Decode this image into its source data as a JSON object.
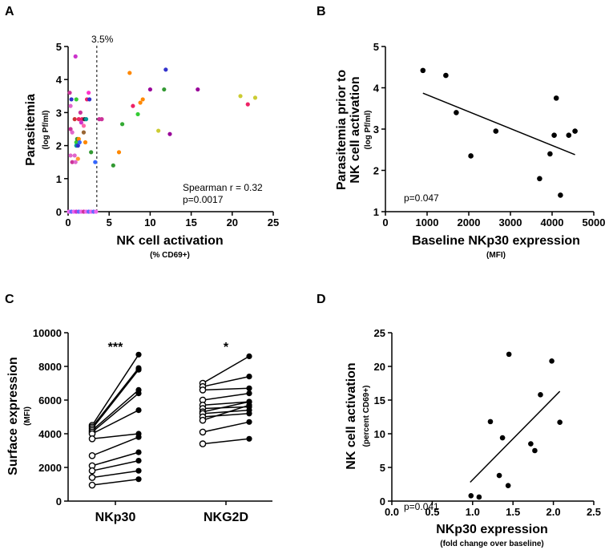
{
  "chart_data": [
    {
      "panel": "A",
      "type": "scatter",
      "xlabel": "NK cell activation",
      "xlabel_sub": "(% CD69+)",
      "ylabel": "Parasitemia",
      "ylabel_sub": "(log Pf/ml)",
      "xlim": [
        0,
        25
      ],
      "ylim": [
        0,
        5
      ],
      "xticks": [
        0,
        5,
        10,
        15,
        20,
        25
      ],
      "yticks": [
        0,
        1,
        2,
        3,
        4,
        5
      ],
      "threshold": {
        "x": 3.5,
        "label": "3.5%"
      },
      "annotations": [
        "Spearman r = 0.32",
        "p=0.0017"
      ],
      "points": [
        {
          "x": 0.2,
          "y": 3.6,
          "c": "#cc3399"
        },
        {
          "x": 0.4,
          "y": 3.4,
          "c": "#3333cc"
        },
        {
          "x": 0.3,
          "y": 3.2,
          "c": "#e066cc"
        },
        {
          "x": 0.3,
          "y": 2.5,
          "c": "#cc3399"
        },
        {
          "x": 0.5,
          "y": 2.4,
          "c": "#e066cc"
        },
        {
          "x": 0.3,
          "y": 1.7,
          "c": "#e066cc"
        },
        {
          "x": 0.5,
          "y": 1.5,
          "c": "#cc3399"
        },
        {
          "x": 0.8,
          "y": 1.7,
          "c": "#e066cc"
        },
        {
          "x": 0.9,
          "y": 1.5,
          "c": "#e066cc"
        },
        {
          "x": 0.9,
          "y": 4.7,
          "c": "#cc33cc"
        },
        {
          "x": 1.0,
          "y": 3.4,
          "c": "#33cc33"
        },
        {
          "x": 0.8,
          "y": 2.8,
          "c": "#cc3333"
        },
        {
          "x": 1.0,
          "y": 2.1,
          "c": "#33cc33"
        },
        {
          "x": 1.0,
          "y": 2.0,
          "c": "#009999"
        },
        {
          "x": 1.1,
          "y": 2.2,
          "c": "#339933"
        },
        {
          "x": 1.2,
          "y": 2.0,
          "c": "#3333cc"
        },
        {
          "x": 1.2,
          "y": 1.6,
          "c": "#ff9933"
        },
        {
          "x": 1.3,
          "y": 2.8,
          "c": "#ee2266"
        },
        {
          "x": 1.3,
          "y": 2.2,
          "c": "#ff8800"
        },
        {
          "x": 1.4,
          "y": 2.1,
          "c": "#3366ff"
        },
        {
          "x": 1.5,
          "y": 3.0,
          "c": "#cc3399"
        },
        {
          "x": 1.7,
          "y": 2.8,
          "c": "#ee2266"
        },
        {
          "x": 1.6,
          "y": 2.7,
          "c": "#cc33cc"
        },
        {
          "x": 1.9,
          "y": 2.6,
          "c": "#ff66aa"
        },
        {
          "x": 1.9,
          "y": 2.4,
          "c": "#996633"
        },
        {
          "x": 2.0,
          "y": 2.8,
          "c": "#333333"
        },
        {
          "x": 2.2,
          "y": 2.8,
          "c": "#009999"
        },
        {
          "x": 2.1,
          "y": 2.1,
          "c": "#ff8800"
        },
        {
          "x": 2.3,
          "y": 3.4,
          "c": "#ee2266"
        },
        {
          "x": 2.5,
          "y": 3.6,
          "c": "#ff33cc"
        },
        {
          "x": 2.6,
          "y": 3.4,
          "c": "#3333cc"
        },
        {
          "x": 2.8,
          "y": 1.8,
          "c": "#339933"
        },
        {
          "x": 3.3,
          "y": 1.5,
          "c": "#3366ff"
        },
        {
          "x": 3.8,
          "y": 2.8,
          "c": "#cc3399"
        },
        {
          "x": 4.1,
          "y": 2.8,
          "c": "#cc3399"
        },
        {
          "x": 5.5,
          "y": 1.4,
          "c": "#339933"
        },
        {
          "x": 6.2,
          "y": 1.8,
          "c": "#ff8800"
        },
        {
          "x": 6.6,
          "y": 2.65,
          "c": "#33aa33"
        },
        {
          "x": 7.5,
          "y": 4.2,
          "c": "#ff8800"
        },
        {
          "x": 7.9,
          "y": 3.2,
          "c": "#ee2266"
        },
        {
          "x": 8.5,
          "y": 2.95,
          "c": "#33cc33"
        },
        {
          "x": 8.8,
          "y": 3.3,
          "c": "#ff8800"
        },
        {
          "x": 9.1,
          "y": 3.4,
          "c": "#ff8800"
        },
        {
          "x": 10.0,
          "y": 3.7,
          "c": "#990099"
        },
        {
          "x": 11.0,
          "y": 2.45,
          "c": "#cccc33"
        },
        {
          "x": 11.7,
          "y": 3.7,
          "c": "#339933"
        },
        {
          "x": 11.9,
          "y": 4.3,
          "c": "#3333cc"
        },
        {
          "x": 12.4,
          "y": 2.35,
          "c": "#990099"
        },
        {
          "x": 15.8,
          "y": 3.7,
          "c": "#990099"
        },
        {
          "x": 21.0,
          "y": 3.5,
          "c": "#cccc33"
        },
        {
          "x": 21.9,
          "y": 3.25,
          "c": "#ee2266"
        },
        {
          "x": 22.8,
          "y": 3.45,
          "c": "#cccc33"
        }
      ],
      "zero_points": [
        {
          "x": 0.1,
          "c": "#ee66ee"
        },
        {
          "x": 0.4,
          "c": "#6666ff"
        },
        {
          "x": 0.7,
          "c": "#ee66ee"
        },
        {
          "x": 1.0,
          "c": "#cc33cc"
        },
        {
          "x": 1.3,
          "c": "#6666ff"
        },
        {
          "x": 1.6,
          "c": "#ee66ee"
        },
        {
          "x": 1.9,
          "c": "#cc3399"
        },
        {
          "x": 2.2,
          "c": "#ee66ee"
        },
        {
          "x": 2.5,
          "c": "#6666ff"
        },
        {
          "x": 2.8,
          "c": "#ee66ee"
        },
        {
          "x": 3.1,
          "c": "#6666ff"
        },
        {
          "x": 3.4,
          "c": "#ee66ee"
        }
      ]
    },
    {
      "panel": "B",
      "type": "scatter",
      "xlabel": "Baseline NKp30 expression",
      "xlabel_sub": "(MFI)",
      "ylabel": "Parasitemia prior to",
      "ylabel2": "NK cell activation",
      "ylabel_sub": "(log Pf/ml)",
      "xlim": [
        0,
        5000
      ],
      "ylim": [
        1,
        5
      ],
      "xticks": [
        0,
        1000,
        2000,
        3000,
        4000,
        5000
      ],
      "yticks": [
        1,
        2,
        3,
        4,
        5
      ],
      "annotations": [
        "p=0.047"
      ],
      "fit": {
        "x0": 900,
        "y0": 3.87,
        "x1": 4550,
        "y1": 2.38
      },
      "points": [
        {
          "x": 900,
          "y": 4.42
        },
        {
          "x": 1450,
          "y": 4.3
        },
        {
          "x": 1700,
          "y": 3.4
        },
        {
          "x": 2050,
          "y": 2.35
        },
        {
          "x": 2650,
          "y": 2.95
        },
        {
          "x": 3700,
          "y": 1.8
        },
        {
          "x": 3950,
          "y": 2.4
        },
        {
          "x": 4050,
          "y": 2.85
        },
        {
          "x": 4100,
          "y": 3.75
        },
        {
          "x": 4200,
          "y": 1.4
        },
        {
          "x": 4400,
          "y": 2.85
        },
        {
          "x": 4550,
          "y": 2.95
        }
      ]
    },
    {
      "panel": "C",
      "type": "paired",
      "ylabel": "Surface expression",
      "ylabel_sub": "(MFI)",
      "ylim": [
        0,
        10000
      ],
      "yticks": [
        0,
        2000,
        4000,
        6000,
        8000,
        10000
      ],
      "groups": [
        {
          "name": "NKp30",
          "significance": "***",
          "pairs": [
            [
              4500,
              8700
            ],
            [
              4400,
              7900
            ],
            [
              4300,
              7800
            ],
            [
              4200,
              6600
            ],
            [
              4100,
              6400
            ],
            [
              4000,
              5400
            ],
            [
              3700,
              4000
            ],
            [
              2700,
              3800
            ],
            [
              2100,
              2900
            ],
            [
              1800,
              2400
            ],
            [
              1400,
              1800
            ],
            [
              950,
              1300
            ]
          ]
        },
        {
          "name": "NKG2D",
          "significance": "*",
          "pairs": [
            [
              7000,
              8600
            ],
            [
              6800,
              7400
            ],
            [
              6600,
              6700
            ],
            [
              6000,
              6400
            ],
            [
              5700,
              5900
            ],
            [
              5500,
              5600
            ],
            [
              5300,
              5900
            ],
            [
              5200,
              5400
            ],
            [
              5000,
              5200
            ],
            [
              4800,
              5700
            ],
            [
              4100,
              4700
            ],
            [
              3400,
              3700
            ]
          ]
        }
      ]
    },
    {
      "panel": "D",
      "type": "scatter",
      "xlabel": "NKp30 expression",
      "xlabel_sub": "(fold change over baseline)",
      "ylabel": "NK cell activation",
      "ylabel_sub": "(percent CD69+)",
      "xlim": [
        0,
        2.5
      ],
      "ylim": [
        0,
        25
      ],
      "xticks": [
        "0.0",
        "0.5",
        "1.0",
        "1.5",
        "2.0",
        "2.5"
      ],
      "yticks": [
        0,
        5,
        10,
        15,
        20,
        25
      ],
      "annotations": [
        "p=0.041"
      ],
      "fit": {
        "x0": 0.97,
        "y0": 2.8,
        "x1": 2.08,
        "y1": 16.3
      },
      "points": [
        {
          "x": 0.98,
          "y": 0.8
        },
        {
          "x": 1.08,
          "y": 0.6
        },
        {
          "x": 1.22,
          "y": 11.8
        },
        {
          "x": 1.33,
          "y": 3.8
        },
        {
          "x": 1.37,
          "y": 9.4
        },
        {
          "x": 1.44,
          "y": 2.3
        },
        {
          "x": 1.45,
          "y": 21.8
        },
        {
          "x": 1.72,
          "y": 8.5
        },
        {
          "x": 1.77,
          "y": 7.5
        },
        {
          "x": 1.84,
          "y": 15.8
        },
        {
          "x": 1.98,
          "y": 20.8
        },
        {
          "x": 2.08,
          "y": 11.7
        }
      ]
    }
  ]
}
